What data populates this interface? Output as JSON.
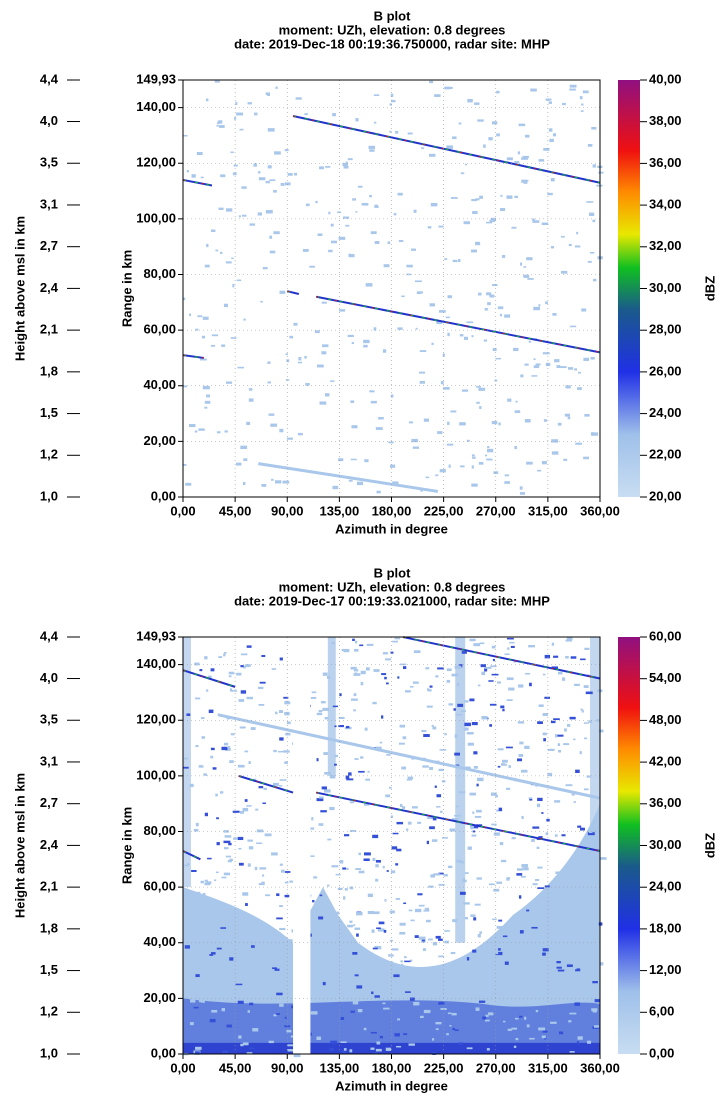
{
  "chart_data": [
    {
      "type": "bscan",
      "title": "B plot",
      "subtitle": "moment: UZh, elevation: 0.8 degrees",
      "date_line": "date: 2019-Dec-18 00:19:36.750000, radar site: MHP",
      "xlabel": "Azimuth in degree",
      "ylabel": "Range in km",
      "y2label": "Height above msl in km",
      "clabel": "dBZ",
      "xlim": [
        0,
        360
      ],
      "xticks": [
        {
          "value": 0,
          "label": "0,00"
        },
        {
          "value": 45,
          "label": "45,00"
        },
        {
          "value": 90,
          "label": "90,00"
        },
        {
          "value": 135,
          "label": "135,00"
        },
        {
          "value": 180,
          "label": "180,00"
        },
        {
          "value": 225,
          "label": "225,00"
        },
        {
          "value": 270,
          "label": "270,00"
        },
        {
          "value": 315,
          "label": "315,00"
        },
        {
          "value": 360,
          "label": "360,00"
        }
      ],
      "ylim": [
        0,
        149.93
      ],
      "yticks": [
        {
          "value": 0,
          "label": "0,00"
        },
        {
          "value": 20,
          "label": "20,00"
        },
        {
          "value": 40,
          "label": "40,00"
        },
        {
          "value": 60,
          "label": "60,00"
        },
        {
          "value": 80,
          "label": "80,00"
        },
        {
          "value": 100,
          "label": "100,00"
        },
        {
          "value": 120,
          "label": "120,00"
        },
        {
          "value": 140,
          "label": "140,00"
        },
        {
          "value": 149.93,
          "label": "149,93"
        }
      ],
      "height_ticks": [
        {
          "value": 0,
          "label": "1,0"
        },
        {
          "value": 15,
          "label": "1,2"
        },
        {
          "value": 30,
          "label": "1,5"
        },
        {
          "value": 45,
          "label": "1,8"
        },
        {
          "value": 60,
          "label": "2,1"
        },
        {
          "value": 75,
          "label": "2,4"
        },
        {
          "value": 90,
          "label": "2,7"
        },
        {
          "value": 105,
          "label": "3,1"
        },
        {
          "value": 120,
          "label": "3,5"
        },
        {
          "value": 135,
          "label": "4,0"
        },
        {
          "value": 149.93,
          "label": "4,4"
        }
      ],
      "clim": [
        20,
        40
      ],
      "cticks": [
        {
          "value": 20,
          "label": "20,00"
        },
        {
          "value": 22,
          "label": "22,00"
        },
        {
          "value": 24,
          "label": "24,00"
        },
        {
          "value": 26,
          "label": "26,00"
        },
        {
          "value": 28,
          "label": "28,00"
        },
        {
          "value": 30,
          "label": "30,00"
        },
        {
          "value": 32,
          "label": "32,00"
        },
        {
          "value": 34,
          "label": "34,00"
        },
        {
          "value": 36,
          "label": "36,00"
        },
        {
          "value": 38,
          "label": "38,00"
        },
        {
          "value": 40,
          "label": "40,00"
        }
      ],
      "grid": true
    },
    {
      "type": "bscan",
      "title": "B plot",
      "subtitle": "moment: UZh, elevation: 0.8 degrees",
      "date_line": "date: 2019-Dec-17 00:19:33.021000, radar site: MHP",
      "xlabel": "Azimuth in degree",
      "ylabel": "Range in km",
      "y2label": "Height above msl in km",
      "clabel": "dBZ",
      "xlim": [
        0,
        360
      ],
      "xticks": [
        {
          "value": 0,
          "label": "0,00"
        },
        {
          "value": 45,
          "label": "45,00"
        },
        {
          "value": 90,
          "label": "90,00"
        },
        {
          "value": 135,
          "label": "135,00"
        },
        {
          "value": 180,
          "label": "180,00"
        },
        {
          "value": 225,
          "label": "225,00"
        },
        {
          "value": 270,
          "label": "270,00"
        },
        {
          "value": 315,
          "label": "315,00"
        },
        {
          "value": 360,
          "label": "360,00"
        }
      ],
      "ylim": [
        0,
        149.93
      ],
      "yticks": [
        {
          "value": 0,
          "label": "0,00"
        },
        {
          "value": 20,
          "label": "20,00"
        },
        {
          "value": 40,
          "label": "40,00"
        },
        {
          "value": 60,
          "label": "60,00"
        },
        {
          "value": 80,
          "label": "80,00"
        },
        {
          "value": 100,
          "label": "100,00"
        },
        {
          "value": 120,
          "label": "120,00"
        },
        {
          "value": 140,
          "label": "140,00"
        },
        {
          "value": 149.93,
          "label": "149,93"
        }
      ],
      "height_ticks": [
        {
          "value": 0,
          "label": "1,0"
        },
        {
          "value": 15,
          "label": "1,2"
        },
        {
          "value": 30,
          "label": "1,5"
        },
        {
          "value": 45,
          "label": "1,8"
        },
        {
          "value": 60,
          "label": "2,1"
        },
        {
          "value": 75,
          "label": "2,4"
        },
        {
          "value": 90,
          "label": "2,7"
        },
        {
          "value": 105,
          "label": "3,1"
        },
        {
          "value": 120,
          "label": "3,5"
        },
        {
          "value": 135,
          "label": "4,0"
        },
        {
          "value": 149.93,
          "label": "4,4"
        }
      ],
      "clim": [
        0,
        60
      ],
      "cticks": [
        {
          "value": 0,
          "label": "0,00"
        },
        {
          "value": 6,
          "label": "6,00"
        },
        {
          "value": 12,
          "label": "12,00"
        },
        {
          "value": 18,
          "label": "18,00"
        },
        {
          "value": 24,
          "label": "24,00"
        },
        {
          "value": 30,
          "label": "30,00"
        },
        {
          "value": 36,
          "label": "36,00"
        },
        {
          "value": 42,
          "label": "42,00"
        },
        {
          "value": 48,
          "label": "48,00"
        },
        {
          "value": 54,
          "label": "54,00"
        },
        {
          "value": 60,
          "label": "60,00"
        }
      ],
      "grid": true
    }
  ]
}
